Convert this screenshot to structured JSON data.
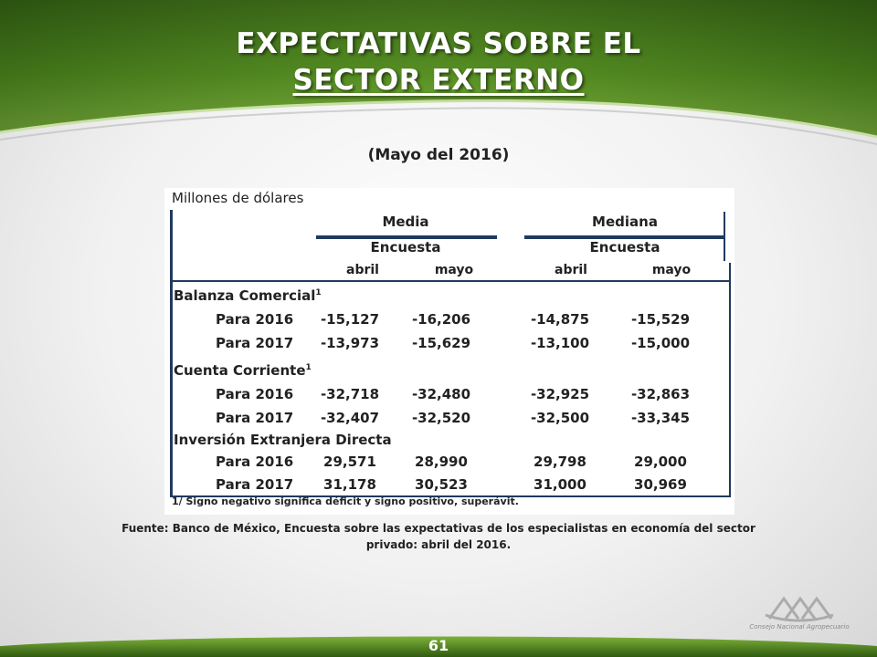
{
  "header": {
    "title_line1": "EXPECTATIVAS SOBRE EL",
    "title_line2": "SECTOR EXTERNO"
  },
  "subtitle": "(Mayo del 2016)",
  "table": {
    "units": "Millones de dólares",
    "groups": [
      {
        "label": "Media",
        "sub": "Encuesta",
        "cols": [
          "abril",
          "mayo"
        ]
      },
      {
        "label": "Mediana",
        "sub": "Encuesta",
        "cols": [
          "abril",
          "mayo"
        ]
      }
    ],
    "sections": [
      {
        "label": "Balanza Comercial",
        "footnote": "1",
        "rows": [
          {
            "label": "Para 2016",
            "values": [
              "-15,127",
              "-16,206",
              "-14,875",
              "-15,529"
            ]
          },
          {
            "label": "Para 2017",
            "values": [
              "-13,973",
              "-15,629",
              "-13,100",
              "-15,000"
            ]
          }
        ]
      },
      {
        "label": "Cuenta Corriente",
        "footnote": "1",
        "rows": [
          {
            "label": "Para 2016",
            "values": [
              "-32,718",
              "-32,480",
              "-32,925",
              "-32,863"
            ]
          },
          {
            "label": "Para 2017",
            "values": [
              "-32,407",
              "-32,520",
              "-32,500",
              "-33,345"
            ]
          }
        ]
      },
      {
        "label": "Inversión Extranjera Directa",
        "footnote": "",
        "rows": [
          {
            "label": "Para 2016",
            "values": [
              "29,571",
              "28,990",
              "29,798",
              "29,000"
            ]
          },
          {
            "label": "Para 2017",
            "values": [
              "31,178",
              "30,523",
              "31,000",
              "30,969"
            ]
          }
        ]
      }
    ],
    "note": "1/ Signo negativo significa déficit y signo positivo, superávit."
  },
  "source": "Fuente: Banco de México, Encuesta sobre las expectativas de los especialistas en economía del sector privado: abril del 2016.",
  "logo": {
    "icon": "cna-logo-icon",
    "text": "Consejo Nacional Agropecuario"
  },
  "footer": {
    "page_number": "61"
  },
  "colors": {
    "header_green_dark": "#2f5a10",
    "header_green_light": "#7fb23a",
    "table_rule": "#1f3a5f"
  }
}
